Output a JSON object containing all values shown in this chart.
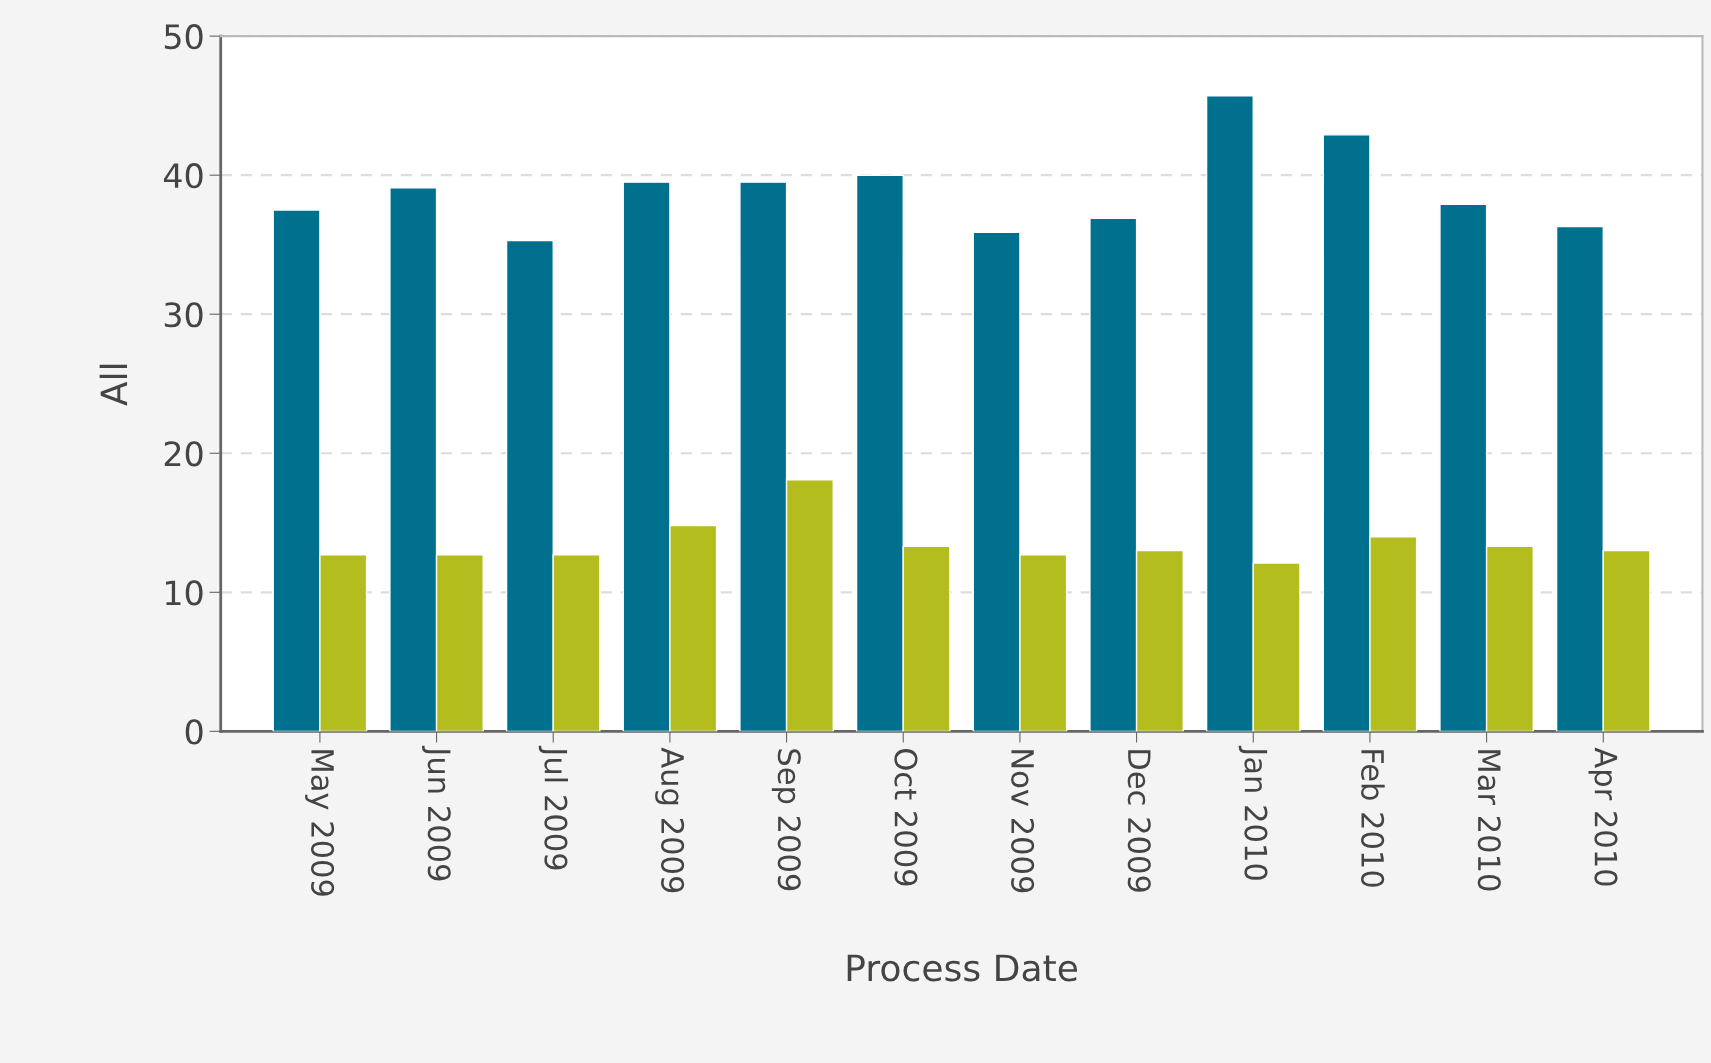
{
  "chart_data": {
    "type": "bar",
    "xlabel": "Process Date",
    "ylabel": "All",
    "categories": [
      "May 2009",
      "Jun 2009",
      "Jul 2009",
      "Aug 2009",
      "Sep 2009",
      "Oct 2009",
      "Nov 2009",
      "Dec 2009",
      "Jan 2010",
      "Feb 2010",
      "Mar 2010",
      "Apr 2010"
    ],
    "series": [
      {
        "color": "#00708f",
        "values": [
          37.5,
          39.1,
          35.3,
          39.5,
          39.5,
          40.0,
          35.9,
          36.9,
          45.7,
          42.9,
          37.9,
          36.3
        ]
      },
      {
        "color": "#b3bd1e",
        "values": [
          12.7,
          12.7,
          12.7,
          14.8,
          18.1,
          13.3,
          12.7,
          13.0,
          12.1,
          14.0,
          13.3,
          13.0
        ]
      }
    ],
    "ylim": [
      0,
      50
    ],
    "yticks": [
      0,
      10,
      20,
      30,
      40,
      50
    ],
    "grid": "y",
    "legend": false
  }
}
